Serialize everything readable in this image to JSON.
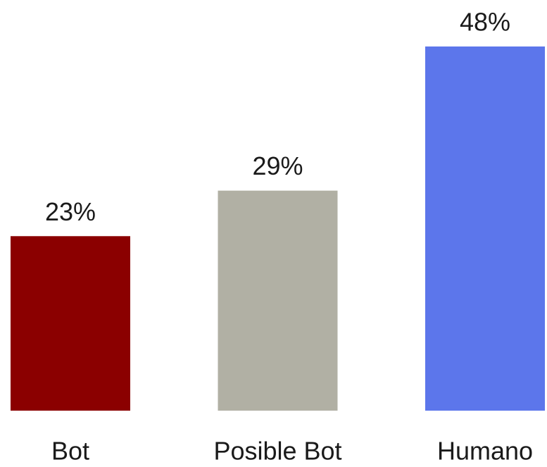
{
  "chart_data": {
    "type": "bar",
    "categories": [
      "Bot",
      "Posible Bot",
      "Humano"
    ],
    "values": [
      23,
      29,
      48
    ],
    "value_labels": [
      "23%",
      "29%",
      "48%"
    ],
    "colors": [
      "#8b0000",
      "#b1b0a4",
      "#5c76eb"
    ]
  }
}
